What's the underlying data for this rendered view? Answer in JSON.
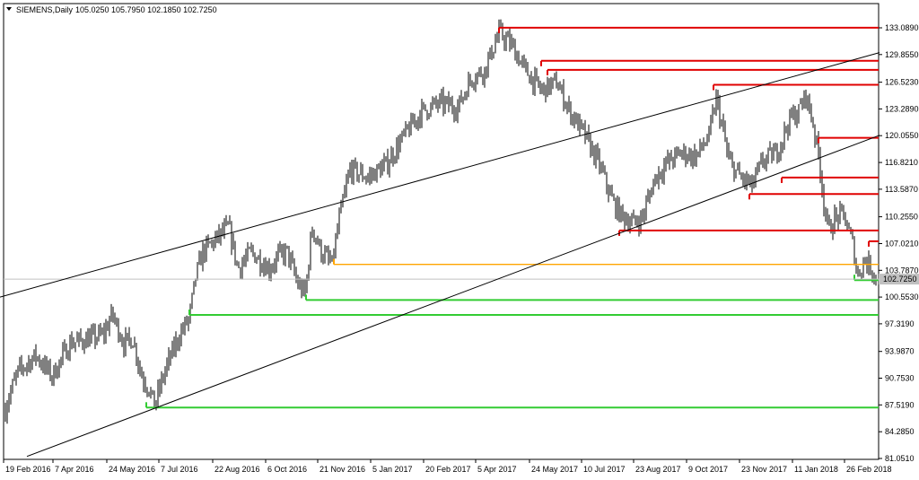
{
  "chart_data": {
    "type": "candlestick",
    "symbol_header": "SIEMENS,Daily",
    "ohlc_header": "105.0250 105.7950 102.1850 102.7250",
    "current_price": 102.725,
    "current_price_label": "102.7250",
    "ylim": [
      81.051,
      134.5
    ],
    "y_ticks": [
      {
        "value": 133.089,
        "label": "133.0890"
      },
      {
        "value": 129.855,
        "label": "129.8550"
      },
      {
        "value": 126.523,
        "label": "126.5230"
      },
      {
        "value": 123.289,
        "label": "123.2890"
      },
      {
        "value": 120.055,
        "label": "120.0550"
      },
      {
        "value": 116.821,
        "label": "116.8210"
      },
      {
        "value": 113.587,
        "label": "113.5870"
      },
      {
        "value": 110.255,
        "label": "110.2550"
      },
      {
        "value": 107.021,
        "label": "107.0210"
      },
      {
        "value": 103.787,
        "label": "103.7870"
      },
      {
        "value": 100.553,
        "label": "100.5530"
      },
      {
        "value": 97.319,
        "label": "97.3190"
      },
      {
        "value": 93.987,
        "label": "93.9870"
      },
      {
        "value": 90.753,
        "label": "90.7530"
      },
      {
        "value": 87.519,
        "label": "87.5190"
      },
      {
        "value": 84.285,
        "label": "84.2850"
      },
      {
        "value": 81.051,
        "label": "81.0510"
      }
    ],
    "x_ticks": [
      "19 Feb 2016",
      "7 Apr 2016",
      "24 May 2016",
      "7 Jul 2016",
      "22 Aug 2016",
      "6 Oct 2016",
      "21 Nov 2016",
      "5 Jan 2017",
      "20 Feb 2017",
      "5 Apr 2017",
      "24 May 2017",
      "10 Jul 2017",
      "23 Aug 2017",
      "9 Oct 2017",
      "23 Nov 2017",
      "11 Jan 2018",
      "26 Feb 2018"
    ],
    "price_path": [
      [
        0,
        83.5
      ],
      [
        8,
        88
      ],
      [
        20,
        91.5
      ],
      [
        40,
        93.5
      ],
      [
        58,
        91
      ],
      [
        78,
        95
      ],
      [
        100,
        95.5
      ],
      [
        115,
        96
      ],
      [
        125,
        98.5
      ],
      [
        138,
        95
      ],
      [
        148,
        95.5
      ],
      [
        158,
        91
      ],
      [
        166,
        89.5
      ],
      [
        172,
        87.5
      ],
      [
        185,
        92
      ],
      [
        200,
        96
      ],
      [
        211,
        98
      ],
      [
        218,
        103
      ],
      [
        226,
        106
      ],
      [
        245,
        108
      ],
      [
        255,
        109
      ],
      [
        265,
        104
      ],
      [
        280,
        106
      ],
      [
        300,
        104
      ],
      [
        310,
        105.5
      ],
      [
        320,
        106
      ],
      [
        332,
        102
      ],
      [
        340,
        101
      ],
      [
        348,
        109
      ],
      [
        358,
        106
      ],
      [
        370,
        104.5
      ],
      [
        378,
        110
      ],
      [
        390,
        116
      ],
      [
        410,
        115
      ],
      [
        430,
        116.5
      ],
      [
        450,
        120
      ],
      [
        470,
        123
      ],
      [
        490,
        124
      ],
      [
        510,
        123.5
      ],
      [
        525,
        127
      ],
      [
        540,
        128
      ],
      [
        556,
        132.5
      ],
      [
        570,
        131
      ],
      [
        585,
        128
      ],
      [
        603,
        125.5
      ],
      [
        620,
        126.5
      ],
      [
        635,
        123
      ],
      [
        652,
        120
      ],
      [
        668,
        116.5
      ],
      [
        683,
        112
      ],
      [
        692,
        110.5
      ],
      [
        705,
        109.5
      ],
      [
        715,
        110
      ],
      [
        730,
        115
      ],
      [
        745,
        117
      ],
      [
        760,
        118
      ],
      [
        775,
        117.5
      ],
      [
        790,
        120
      ],
      [
        798,
        124.5
      ],
      [
        805,
        121
      ],
      [
        812,
        117
      ],
      [
        825,
        115
      ],
      [
        838,
        114
      ],
      [
        850,
        117
      ],
      [
        865,
        118
      ],
      [
        880,
        122
      ],
      [
        890,
        123
      ],
      [
        898,
        125
      ],
      [
        906,
        121.5
      ],
      [
        913,
        117
      ],
      [
        918,
        112
      ],
      [
        923,
        108.5
      ],
      [
        930,
        110
      ],
      [
        940,
        110.5
      ],
      [
        950,
        107
      ],
      [
        956,
        103
      ],
      [
        962,
        105
      ],
      [
        968,
        104.5
      ],
      [
        978,
        102.7
      ]
    ],
    "support_lines": [
      {
        "y": 104.5,
        "x_start": 372,
        "color": "#ffa500"
      },
      {
        "y": 100.2,
        "x_start": 341,
        "color": "#33cc33"
      },
      {
        "y": 98.4,
        "x_start": 211,
        "color": "#33cc33"
      },
      {
        "y": 87.2,
        "x_start": 163,
        "color": "#33cc33"
      },
      {
        "y": 102.6,
        "x_start": 952,
        "color": "#33cc33"
      }
    ],
    "resistance_lines": [
      {
        "y": 133.1,
        "x_start": 556
      },
      {
        "y": 129.1,
        "x_start": 603
      },
      {
        "y": 128.0,
        "x_start": 610
      },
      {
        "y": 126.2,
        "x_start": 795
      },
      {
        "y": 119.8,
        "x_start": 912
      },
      {
        "y": 115.0,
        "x_start": 871
      },
      {
        "y": 113.0,
        "x_start": 835
      },
      {
        "y": 108.6,
        "x_start": 690
      },
      {
        "y": 107.3,
        "x_start": 968
      }
    ],
    "trend_lines": [
      {
        "x1": 0,
        "y1": 100.55,
        "x2": 980,
        "y2": 130.1
      },
      {
        "x1": 30,
        "y1": 81.3,
        "x2": 980,
        "y2": 120.1
      }
    ],
    "colors": {
      "background": "#ffffff",
      "candles": "#000000",
      "resistance": "#e00000",
      "support": "#33cc33",
      "pivot": "#ffa500",
      "trendline": "#000000",
      "price_line": "#c0c0c0"
    }
  }
}
